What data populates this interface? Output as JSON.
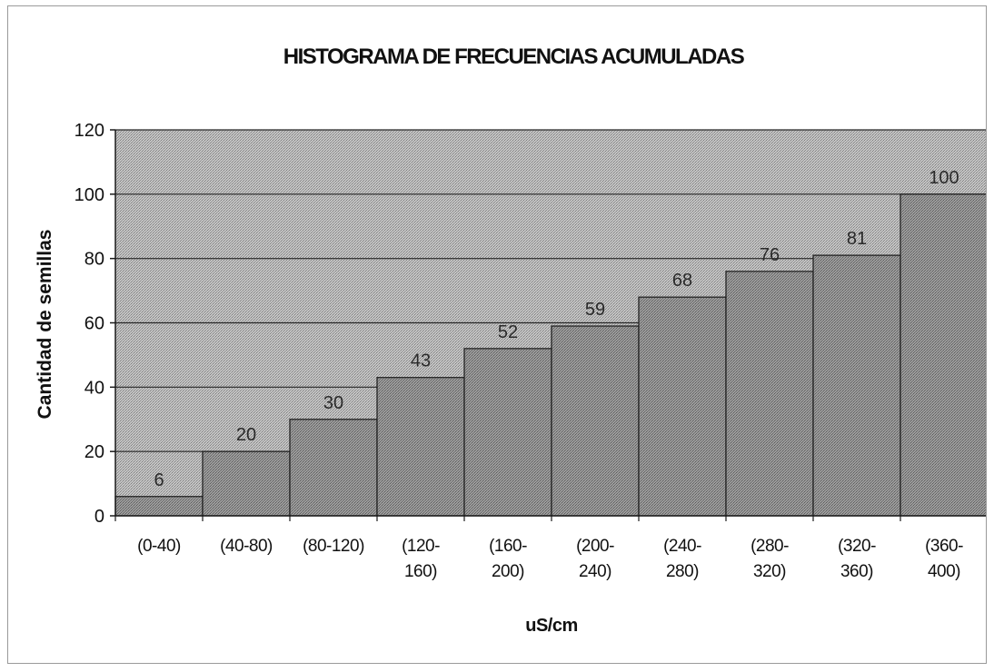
{
  "chart_data": {
    "type": "bar",
    "title": "HISTOGRAMA DE FRECUENCIAS ACUMULADAS",
    "xlabel": "uS/cm",
    "ylabel": "Cantidad de semillas",
    "categories": [
      [
        "(0-40)"
      ],
      [
        "(40-80)"
      ],
      [
        "(80-120)"
      ],
      [
        "(120-",
        "160)"
      ],
      [
        "(160-",
        "200)"
      ],
      [
        "(200-",
        "240)"
      ],
      [
        "(240-",
        "280)"
      ],
      [
        "(280-",
        "320)"
      ],
      [
        "(320-",
        "360)"
      ],
      [
        "(360-",
        "400)"
      ]
    ],
    "values": [
      6,
      20,
      30,
      43,
      52,
      59,
      68,
      76,
      81,
      100
    ],
    "ylim": [
      0,
      120
    ],
    "yticks": [
      0,
      20,
      40,
      60,
      80,
      100,
      120
    ],
    "grid": true,
    "legend": "none",
    "colors": {
      "plot_background": "#b9b9b9",
      "bar_fill": "#8a8a8a",
      "bar_edge": "#1a1a1a",
      "gridline": "#262626"
    }
  }
}
